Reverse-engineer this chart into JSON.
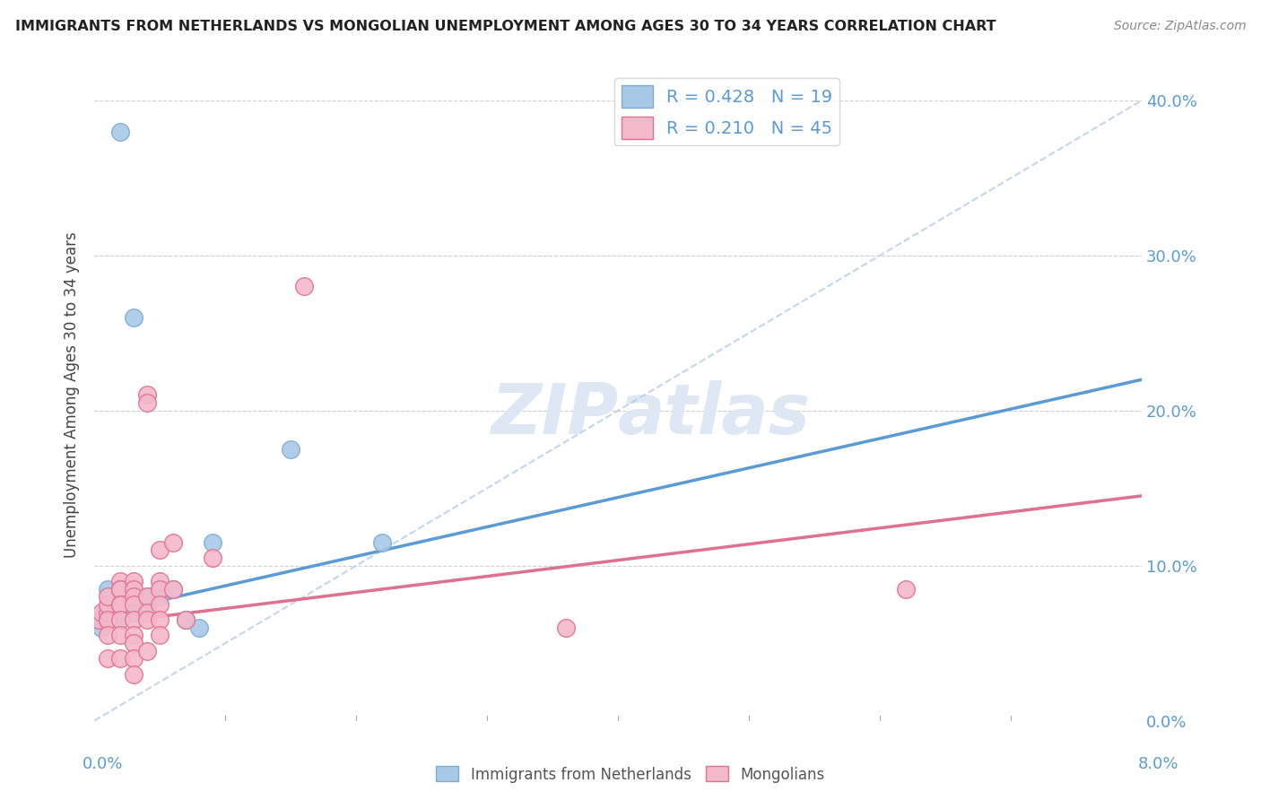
{
  "title": "IMMIGRANTS FROM NETHERLANDS VS MONGOLIAN UNEMPLOYMENT AMONG AGES 30 TO 34 YEARS CORRELATION CHART",
  "source": "Source: ZipAtlas.com",
  "ylabel": "Unemployment Among Ages 30 to 34 years",
  "xmin": 0.0,
  "xmax": 0.08,
  "ymin": 0.0,
  "ymax": 0.42,
  "r_blue": 0.428,
  "n_blue": 19,
  "r_pink": 0.21,
  "n_pink": 45,
  "color_blue": "#a8c8e8",
  "color_blue_edge": "#7aaed6",
  "color_blue_line": "#5b9bd5",
  "color_pink": "#f4b8cb",
  "color_pink_edge": "#e07090",
  "color_pink_line": "#e07090",
  "color_dashed": "#b8cfe8",
  "watermark_color": "#dde8f4",
  "legend_label_blue": "Immigrants from Netherlands",
  "legend_label_pink": "Mongolians",
  "blue_x": [
    0.0005,
    0.001,
    0.001,
    0.002,
    0.002,
    0.002,
    0.003,
    0.003,
    0.003,
    0.004,
    0.004,
    0.005,
    0.005,
    0.006,
    0.007,
    0.008,
    0.009,
    0.015,
    0.022
  ],
  "blue_y": [
    0.06,
    0.07,
    0.085,
    0.065,
    0.07,
    0.38,
    0.07,
    0.075,
    0.26,
    0.075,
    0.08,
    0.08,
    0.085,
    0.085,
    0.065,
    0.06,
    0.115,
    0.175,
    0.115
  ],
  "pink_x": [
    0.0003,
    0.0005,
    0.001,
    0.001,
    0.001,
    0.001,
    0.001,
    0.001,
    0.001,
    0.002,
    0.002,
    0.002,
    0.002,
    0.002,
    0.002,
    0.002,
    0.002,
    0.003,
    0.003,
    0.003,
    0.003,
    0.003,
    0.003,
    0.003,
    0.003,
    0.003,
    0.004,
    0.004,
    0.004,
    0.004,
    0.004,
    0.004,
    0.005,
    0.005,
    0.005,
    0.005,
    0.005,
    0.005,
    0.006,
    0.006,
    0.007,
    0.009,
    0.016,
    0.036,
    0.062
  ],
  "pink_y": [
    0.065,
    0.07,
    0.065,
    0.07,
    0.075,
    0.08,
    0.065,
    0.055,
    0.04,
    0.09,
    0.085,
    0.085,
    0.075,
    0.075,
    0.065,
    0.055,
    0.04,
    0.09,
    0.085,
    0.08,
    0.075,
    0.065,
    0.055,
    0.05,
    0.04,
    0.03,
    0.21,
    0.205,
    0.08,
    0.07,
    0.065,
    0.045,
    0.11,
    0.09,
    0.085,
    0.075,
    0.065,
    0.055,
    0.115,
    0.085,
    0.065,
    0.105,
    0.28,
    0.06,
    0.085
  ],
  "blue_line_x": [
    0.0,
    0.08
  ],
  "blue_line_y": [
    0.068,
    0.22
  ],
  "pink_line_x": [
    0.0,
    0.08
  ],
  "pink_line_y": [
    0.062,
    0.145
  ],
  "dash_line_x": [
    0.0,
    0.08
  ],
  "dash_line_y": [
    0.0,
    0.4
  ],
  "y_ticks": [
    0.0,
    0.1,
    0.2,
    0.3,
    0.4
  ],
  "y_tick_labels": [
    "0.0%",
    "10.0%",
    "20.0%",
    "30.0%",
    "40.0%"
  ],
  "x_tick_labels_show": [
    "0.0%",
    "8.0%"
  ]
}
